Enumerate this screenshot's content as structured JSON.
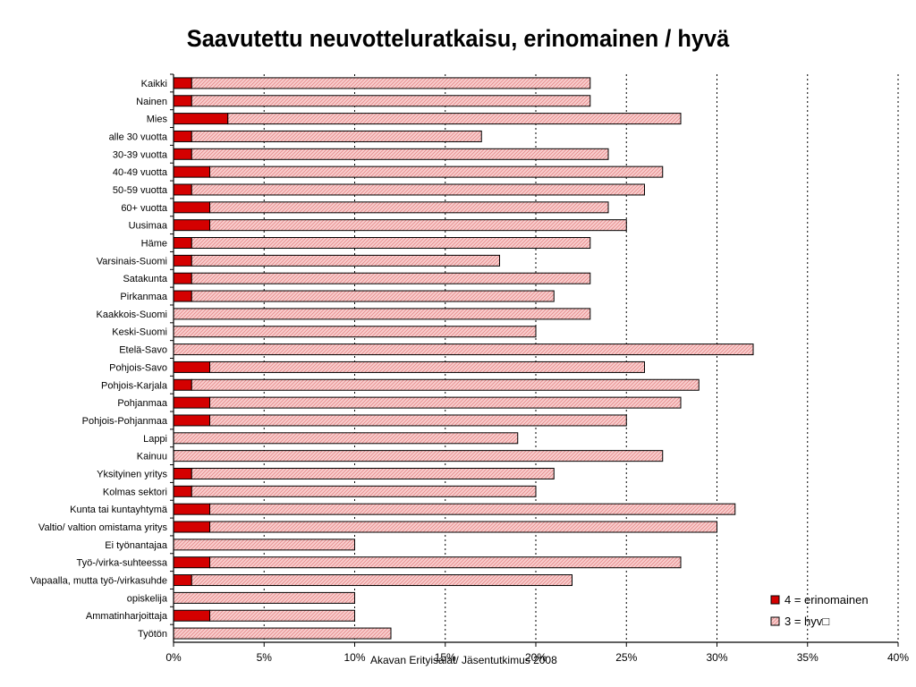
{
  "chart_data": {
    "type": "bar",
    "orientation": "horizontal",
    "stacked": true,
    "title": "Saavutettu neuvotteluratkaisu, erinomainen / hyvä",
    "categories": [
      "Kaikki",
      "Nainen",
      "Mies",
      "alle 30 vuotta",
      "30-39 vuotta",
      "40-49 vuotta",
      "50-59 vuotta",
      "60+ vuotta",
      "Uusimaa",
      "Häme",
      "Varsinais-Suomi",
      "Satakunta",
      "Pirkanmaa",
      "Kaakkois-Suomi",
      "Keski-Suomi",
      "Etelä-Savo",
      "Pohjois-Savo",
      "Pohjois-Karjala",
      "Pohjanmaa",
      "Pohjois-Pohjanmaa",
      "Lappi",
      "Kainuu",
      "Yksityinen yritys",
      "Kolmas sektori",
      "Kunta tai kuntayhtymä",
      "Valtio/ valtion omistama yritys",
      "Ei työnantajaa",
      "Työ-/virka-suhteessa",
      "Vapaalla, mutta työ-/virkasuhde",
      "opiskelija",
      "Ammatinharjoittaja",
      "Työtön"
    ],
    "series": [
      {
        "name": "4 = erinomainen",
        "color": "#d40000",
        "values": [
          1,
          1,
          3,
          1,
          1,
          2,
          1,
          2,
          2,
          1,
          1,
          1,
          1,
          0,
          0,
          0,
          2,
          1,
          2,
          2,
          0,
          0,
          1,
          1,
          2,
          2,
          0,
          2,
          1,
          0,
          2,
          0
        ]
      },
      {
        "name": "3 = hyv□",
        "color": "#f7c6c6",
        "values": [
          22,
          22,
          25,
          16,
          23,
          25,
          25,
          22,
          23,
          22,
          17,
          22,
          20,
          23,
          20,
          32,
          24,
          28,
          26,
          23,
          19,
          27,
          20,
          19,
          29,
          28,
          10,
          26,
          21,
          10,
          8,
          12
        ]
      }
    ],
    "xlim": [
      0,
      40
    ],
    "x_unit": "%",
    "xticks": [
      0,
      5,
      10,
      15,
      20,
      25,
      30,
      35,
      40
    ],
    "xtick_labels": [
      "0%",
      "5%",
      "10%",
      "15%",
      "20%",
      "25%",
      "30%",
      "35%",
      "40%"
    ],
    "grid": "vertical dotted",
    "legend_position": "bottom-right"
  },
  "footer": "Akavan Erityisalat/ Jäsentutkimus 2008"
}
